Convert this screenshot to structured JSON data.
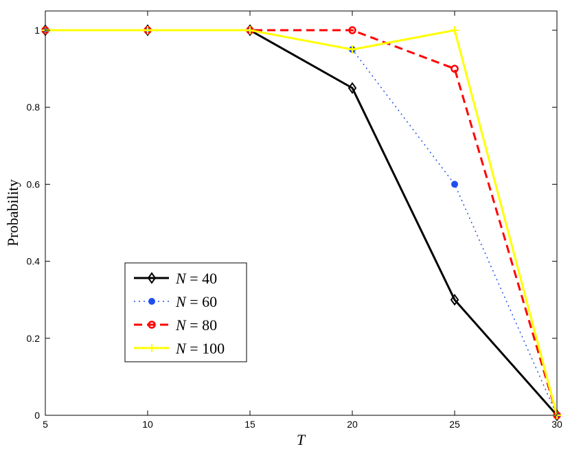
{
  "chart_data": {
    "type": "line",
    "title": "",
    "xlabel": "T",
    "ylabel": "Probability",
    "xlim": [
      5,
      30
    ],
    "ylim": [
      0,
      1.05
    ],
    "xticks": [
      5,
      10,
      15,
      20,
      25,
      30
    ],
    "yticks": [
      0,
      0.2,
      0.4,
      0.6,
      0.8,
      1
    ],
    "ytick_labels": [
      "0",
      "0.2",
      "0.4",
      "0.6",
      "0.8",
      "1"
    ],
    "grid": false,
    "legend_position": "bottom-left",
    "x": [
      5,
      10,
      15,
      20,
      25,
      30
    ],
    "series": [
      {
        "name": "N = 40",
        "label_var": "N",
        "label_value": "40",
        "values": [
          1,
          1,
          1,
          0.85,
          0.3,
          0
        ],
        "color": "#000000",
        "line": "solid",
        "marker": "diamond"
      },
      {
        "name": "N = 60",
        "label_var": "N",
        "label_value": "60",
        "values": [
          1,
          1,
          1,
          0.95,
          0.6,
          0
        ],
        "color": "#1f4ef0",
        "line": "dotted",
        "marker": "dot"
      },
      {
        "name": "N = 80",
        "label_var": "N",
        "label_value": "80",
        "values": [
          1,
          1,
          1,
          1,
          0.9,
          0
        ],
        "color": "#ff0000",
        "line": "dashed",
        "marker": "circle"
      },
      {
        "name": "N = 100",
        "label_var": "N",
        "label_value": "100",
        "values": [
          1,
          1,
          1,
          0.95,
          1,
          0
        ],
        "color": "#ffff00",
        "line": "solid",
        "marker": "plus"
      }
    ]
  }
}
